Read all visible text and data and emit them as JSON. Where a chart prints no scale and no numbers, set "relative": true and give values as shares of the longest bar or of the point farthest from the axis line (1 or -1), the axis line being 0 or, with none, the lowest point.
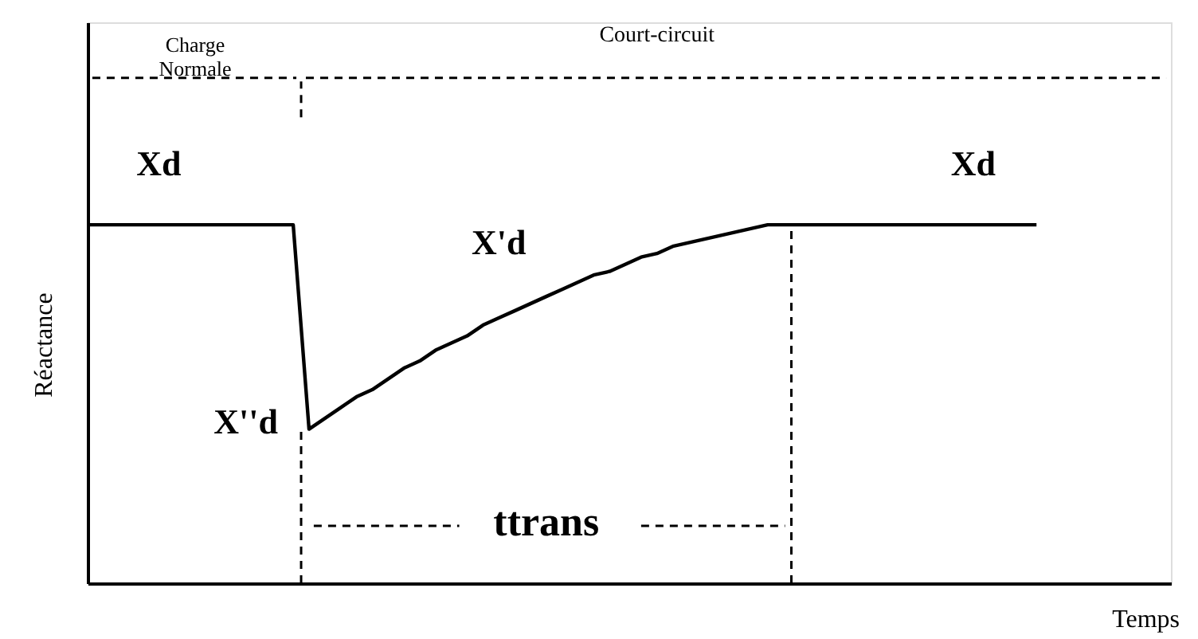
{
  "chart_data": {
    "type": "line",
    "relative": true,
    "xlabel": "Temps",
    "ylabel": "Réactance",
    "categories": [
      null,
      null,
      null,
      null,
      null,
      null,
      null,
      null,
      null,
      null,
      null,
      null,
      null,
      null,
      null,
      null,
      null,
      null,
      null,
      null,
      null,
      null,
      null,
      null,
      null,
      null,
      null,
      null,
      null,
      null,
      null,
      null,
      null,
      null,
      null,
      null,
      null,
      null,
      null,
      null,
      null,
      null,
      null,
      null,
      null,
      null,
      null,
      null,
      null,
      null,
      null,
      null,
      null,
      null,
      null,
      null,
      null,
      null,
      null,
      null,
      null
    ],
    "series": [
      {
        "color": "#000000",
        "values": [
          1,
          1,
          1,
          1,
          1,
          1,
          1,
          1,
          1,
          1,
          1,
          1,
          1,
          1,
          0.43,
          0.46,
          0.49,
          0.52,
          0.54,
          0.57,
          0.6,
          0.62,
          0.65,
          0.67,
          0.69,
          0.72,
          0.74,
          0.76,
          0.78,
          0.8,
          0.82,
          0.84,
          0.86,
          0.87,
          0.89,
          0.91,
          0.92,
          0.94,
          0.95,
          0.96,
          0.97,
          0.98,
          0.99,
          1,
          1,
          1,
          1,
          1,
          1,
          1,
          1,
          1,
          1,
          1,
          1,
          1,
          1,
          1,
          1,
          1,
          1
        ]
      }
    ],
    "annotations": [
      "Charge\nNormale",
      "Court-circuit",
      "Xd",
      "Xd",
      "X'd",
      "X''d",
      "ttrans"
    ],
    "marker": "none",
    "line_style": "solid",
    "grid": false
  }
}
